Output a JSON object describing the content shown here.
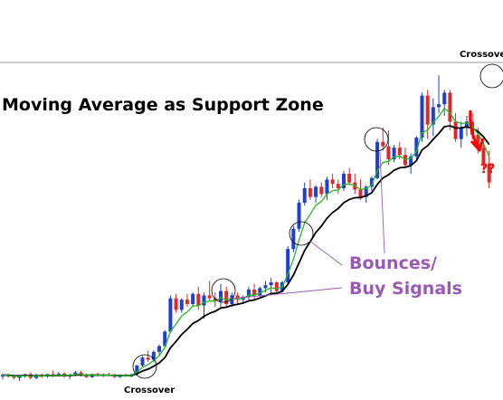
{
  "chart_data": {
    "type": "candlestick",
    "title": "Moving Average as Support Zone",
    "annotations": {
      "crossover_bottom": "Crossover",
      "crossover_top": "Crossover",
      "bounces_line1": "Bounces/",
      "bounces_line2": "Buy Signals",
      "question": "??"
    },
    "colors": {
      "bull": "#1f3fd0",
      "bear": "#e02828",
      "fast_ma": "#22bb22",
      "slow_ma": "#000000",
      "annotation": "#9b59b6",
      "arrow": "#ff0000",
      "resistance": "#999999"
    },
    "candles": [
      [
        95,
        96,
        94,
        95.5
      ],
      [
        95.5,
        96,
        94.5,
        95
      ],
      [
        95,
        95.5,
        94,
        94.5
      ],
      [
        94.5,
        95.5,
        93.5,
        95
      ],
      [
        95,
        96,
        94.5,
        95.8
      ],
      [
        95.8,
        96.5,
        94,
        94.5
      ],
      [
        94.5,
        96,
        94,
        95.6
      ],
      [
        95.6,
        96,
        94.5,
        95
      ],
      [
        95,
        96,
        94.5,
        95.8
      ],
      [
        95.8,
        97,
        94.8,
        95.2
      ],
      [
        95.2,
        96.5,
        95,
        96
      ],
      [
        96,
        96.5,
        94.5,
        95
      ],
      [
        95,
        96,
        94,
        95.5
      ],
      [
        95.5,
        97,
        95,
        96.4
      ],
      [
        96.4,
        97,
        95,
        95.5
      ],
      [
        95.5,
        96,
        94.5,
        94.8
      ],
      [
        94.8,
        96,
        94.5,
        95.8
      ],
      [
        95.8,
        96.3,
        95,
        95.2
      ],
      [
        95.2,
        96,
        94.8,
        95.6
      ],
      [
        95.6,
        96.2,
        95,
        95.3
      ],
      [
        95.3,
        96,
        94.5,
        94.8
      ],
      [
        94.8,
        95.8,
        94.5,
        95.5
      ],
      [
        95.5,
        96,
        94.8,
        95
      ],
      [
        95,
        96,
        94.8,
        95.7
      ],
      [
        95.7,
        99,
        95.5,
        98.8
      ],
      [
        98.8,
        102,
        98,
        101.5
      ],
      [
        101.5,
        104,
        100,
        100.8
      ],
      [
        100.8,
        104,
        100,
        103.5
      ],
      [
        103.5,
        106,
        102.5,
        105.5
      ],
      [
        105.5,
        111,
        105,
        110.5
      ],
      [
        110.5,
        123,
        110,
        122
      ],
      [
        122,
        123.5,
        117,
        118
      ],
      [
        118,
        122,
        117,
        121.5
      ],
      [
        121.5,
        123.5,
        119,
        120
      ],
      [
        120,
        124,
        119.5,
        123.5
      ],
      [
        123.5,
        126,
        118,
        119.5
      ],
      [
        119.5,
        124,
        115,
        123
      ],
      [
        123,
        128,
        121,
        122
      ],
      [
        122,
        124,
        119,
        121
      ],
      [
        121,
        127,
        119,
        124.5
      ],
      [
        124.5,
        126,
        119,
        120
      ],
      [
        120,
        124,
        119,
        123
      ],
      [
        123,
        124,
        120,
        121.5
      ],
      [
        121.5,
        123,
        120,
        122.5
      ],
      [
        122.5,
        126,
        121,
        125
      ],
      [
        125,
        127,
        121,
        123
      ],
      [
        123,
        126,
        122,
        125.5
      ],
      [
        125.5,
        128,
        124,
        126.5
      ],
      [
        126.5,
        129,
        123,
        127.5
      ],
      [
        127.5,
        127.8,
        124,
        124.5
      ],
      [
        124.5,
        128,
        124,
        127.5
      ],
      [
        127.5,
        140,
        127,
        139
      ],
      [
        139,
        147,
        138,
        146
      ],
      [
        146,
        156,
        145,
        155
      ],
      [
        155,
        162,
        154,
        160
      ],
      [
        160,
        163,
        156,
        157
      ],
      [
        157,
        161,
        155,
        160.5
      ],
      [
        160.5,
        162,
        157,
        158
      ],
      [
        158,
        164,
        156,
        163
      ],
      [
        163,
        165,
        160,
        161.5
      ],
      [
        161.5,
        163,
        158,
        160
      ],
      [
        160,
        166,
        159,
        165
      ],
      [
        165,
        167,
        161,
        162
      ],
      [
        162,
        165,
        158,
        159.5
      ],
      [
        159.5,
        163,
        156,
        157
      ],
      [
        157,
        161,
        155,
        160.5
      ],
      [
        160.5,
        164,
        159,
        163.5
      ],
      [
        163.5,
        177,
        163,
        176
      ],
      [
        176,
        181,
        173,
        174.5
      ],
      [
        174.5,
        180,
        168,
        170
      ],
      [
        170,
        175,
        169,
        174
      ],
      [
        174,
        176,
        170,
        171.5
      ],
      [
        171.5,
        174,
        167,
        168
      ],
      [
        168,
        172,
        165,
        171
      ],
      [
        171,
        178,
        170,
        177.5
      ],
      [
        177.5,
        193,
        176,
        192
      ],
      [
        192,
        194,
        177,
        182
      ],
      [
        182,
        191,
        178,
        188
      ],
      [
        188,
        199,
        186,
        189
      ],
      [
        189,
        194,
        185,
        193
      ],
      [
        193,
        194,
        180,
        183
      ],
      [
        183,
        186,
        176,
        177
      ],
      [
        177,
        183,
        174,
        181
      ],
      [
        181,
        185,
        178,
        183
      ],
      [
        183,
        186,
        177,
        178.5
      ],
      [
        178.5,
        181,
        172,
        174
      ],
      [
        174,
        176,
        167,
        168.5
      ],
      [
        168.5,
        173,
        160,
        162
      ]
    ]
  }
}
